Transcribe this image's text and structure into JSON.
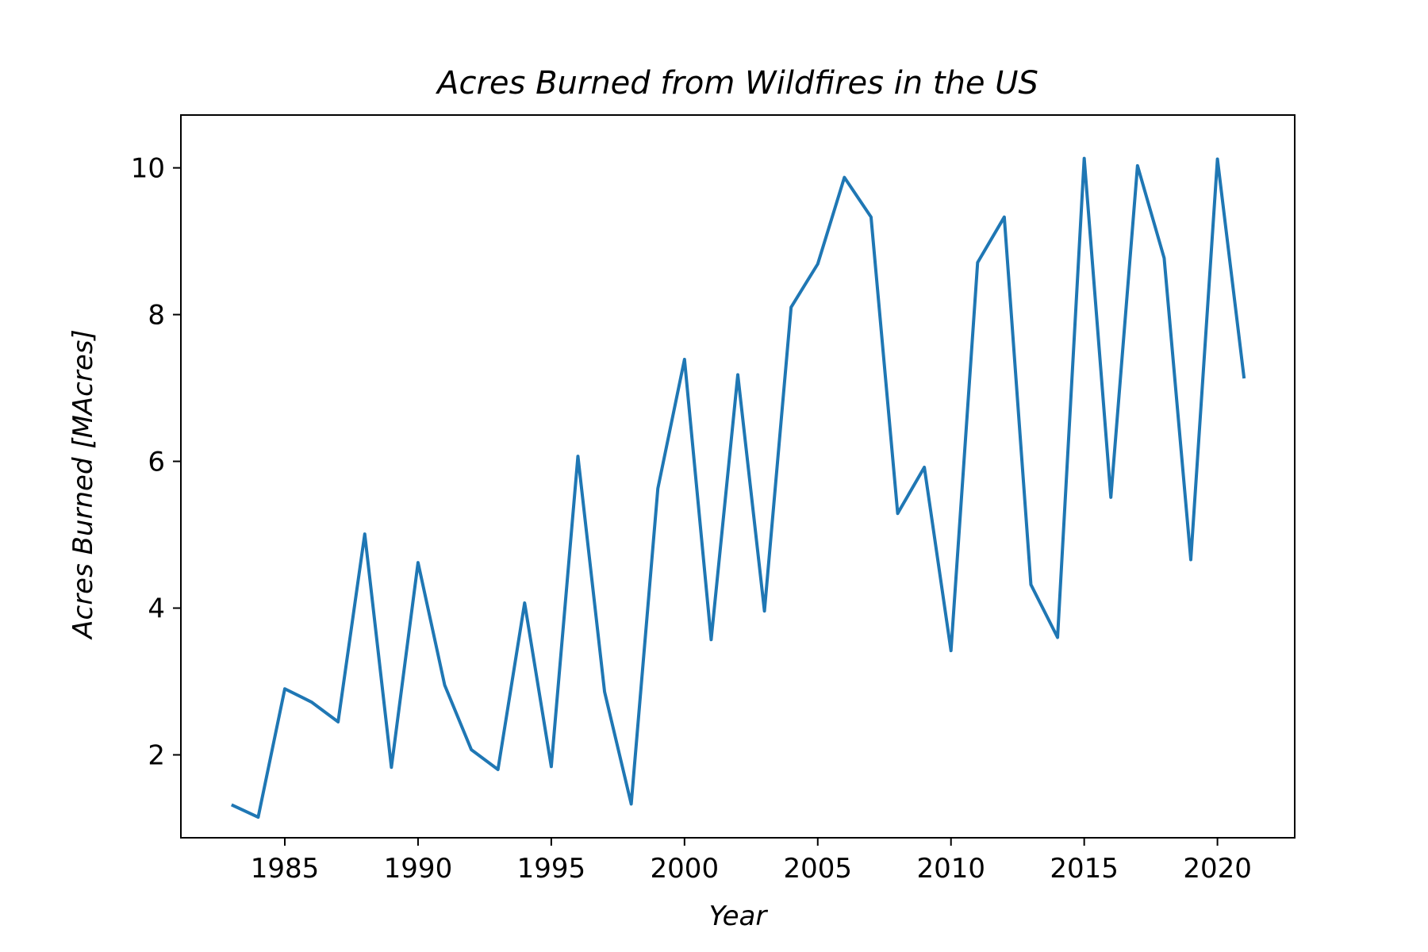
{
  "chart_data": {
    "type": "line",
    "title": "Acres Burned from Wildfires in the US",
    "xlabel": "Year",
    "ylabel": "Acres Burned [MAcres]",
    "xlim": [
      1981.1,
      2022.9
    ],
    "ylim": [
      0.87,
      10.72
    ],
    "x_ticks": [
      1985,
      1990,
      1995,
      2000,
      2005,
      2010,
      2015,
      2020
    ],
    "y_ticks": [
      2,
      4,
      6,
      8,
      10
    ],
    "x_tick_labels": [
      "1985",
      "1990",
      "1995",
      "2000",
      "2005",
      "2010",
      "2015",
      "2020"
    ],
    "y_tick_labels": [
      "2",
      "4",
      "6",
      "8",
      "10"
    ],
    "grid": false,
    "legend": "none",
    "series": [
      {
        "color": "#1f77b4",
        "x": [
          1983,
          1984,
          1985,
          1986,
          1987,
          1988,
          1989,
          1990,
          1991,
          1992,
          1993,
          1994,
          1995,
          1996,
          1997,
          1998,
          1999,
          2000,
          2001,
          2002,
          2003,
          2004,
          2005,
          2006,
          2007,
          2008,
          2009,
          2010,
          2011,
          2012,
          2013,
          2014,
          2015,
          2016,
          2017,
          2018,
          2019,
          2020,
          2021
        ],
        "values": [
          1.32,
          1.15,
          2.9,
          2.72,
          2.45,
          5.01,
          1.83,
          4.62,
          2.95,
          2.07,
          1.8,
          4.07,
          1.84,
          6.07,
          2.86,
          1.33,
          5.63,
          7.39,
          3.57,
          7.18,
          3.96,
          8.1,
          8.69,
          9.87,
          9.33,
          5.29,
          5.92,
          3.42,
          8.71,
          9.33,
          4.32,
          3.6,
          10.13,
          5.51,
          10.03,
          8.77,
          4.66,
          10.12,
          7.13
        ]
      }
    ]
  }
}
